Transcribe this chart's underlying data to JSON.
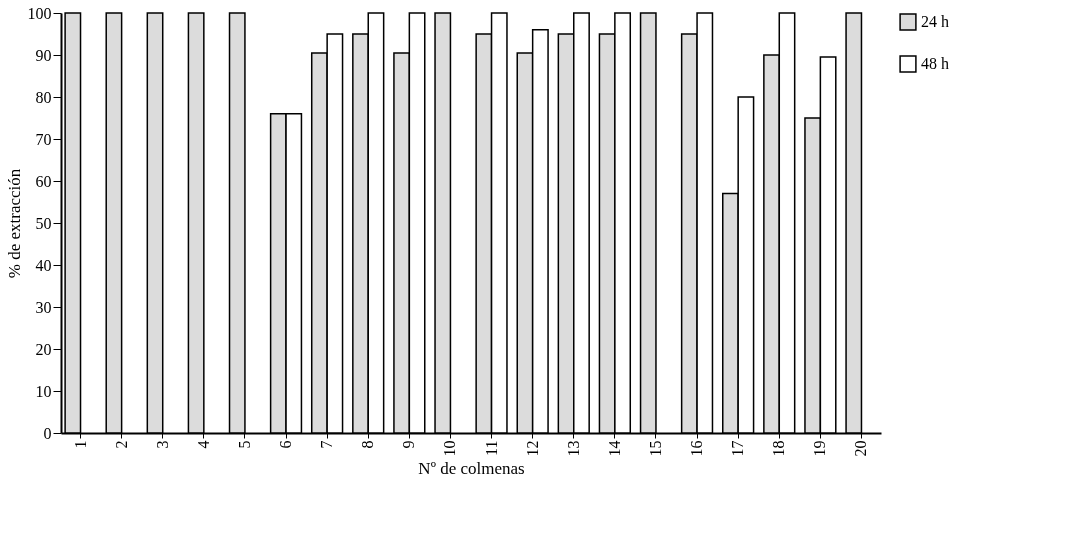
{
  "chart_data": {
    "type": "bar",
    "xlabel": "Nº de colmenas",
    "ylabel": "% de extracción",
    "categories": [
      "1",
      "2",
      "3",
      "4",
      "5",
      "6",
      "7",
      "8",
      "9",
      "10",
      "11",
      "12",
      "13",
      "14",
      "15",
      "16",
      "17",
      "18",
      "19",
      "20"
    ],
    "series": [
      {
        "name": "24 h",
        "color": "#dcdcdc",
        "values": [
          100,
          100,
          100,
          100,
          100,
          76,
          90.5,
          95,
          90.5,
          100,
          95,
          90.5,
          95,
          95,
          100,
          95,
          57,
          90,
          75,
          100
        ]
      },
      {
        "name": "48 h",
        "color": "#ffffff",
        "values": [
          null,
          null,
          null,
          null,
          null,
          76,
          95,
          100,
          100,
          null,
          100,
          96,
          100,
          100,
          null,
          100,
          80,
          100,
          89.5,
          null
        ]
      }
    ],
    "ylim": [
      0,
      100
    ],
    "yticks": [
      0,
      10,
      20,
      30,
      40,
      50,
      60,
      70,
      80,
      90,
      100
    ],
    "grid": false,
    "legend": "right"
  }
}
